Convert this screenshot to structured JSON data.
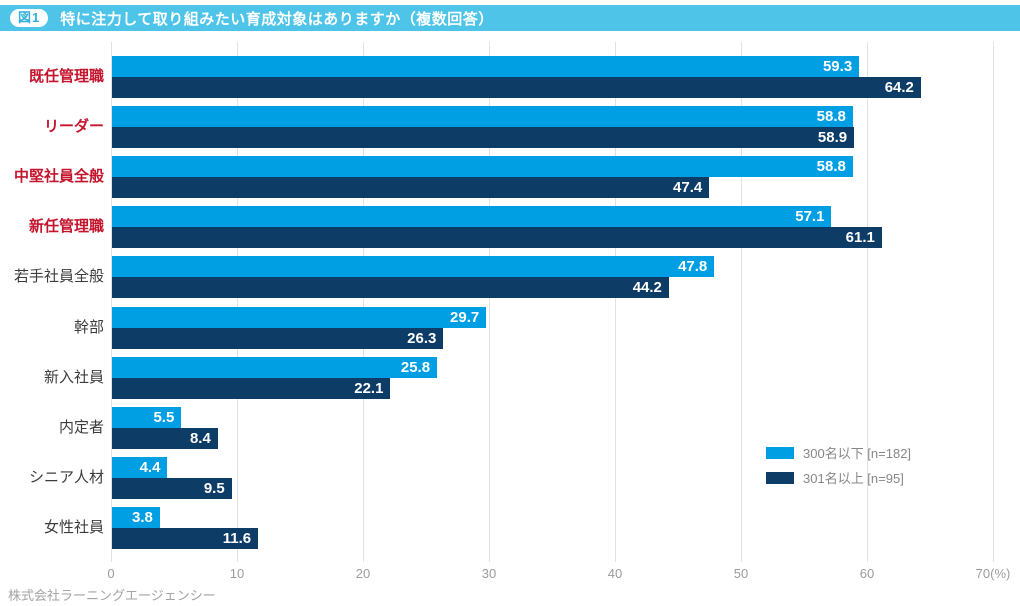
{
  "header": {
    "badge": "図1",
    "title": "特に注力して取り組みたい育成対象はありますか（複数回答）"
  },
  "footer": {
    "company": "株式会社ラーニングエージェンシー"
  },
  "colors": {
    "header_band": "#4dc4e8",
    "badge_text": "#2fb0dd",
    "series1": "#009ee2",
    "series2": "#0d3c66",
    "category_emphasis": "#c4152d",
    "category_normal": "#3c3c3c",
    "gridline": "#e1e1e1",
    "tick_text": "#9b9b9b"
  },
  "chart_data": {
    "type": "bar",
    "orientation": "horizontal",
    "title": "特に注力して取り組みたい育成対象はありますか（複数回答）",
    "categories": [
      "既任管理職",
      "リーダー",
      "中堅社員全般",
      "新任管理職",
      "若手社員全般",
      "幹部",
      "新入社員",
      "内定者",
      "シニア人材",
      "女性社員"
    ],
    "category_emphasis": [
      true,
      true,
      true,
      true,
      false,
      false,
      false,
      false,
      false,
      false
    ],
    "series": [
      {
        "name": "300名以下 [n=182]",
        "color": "#009ee2",
        "values": [
          59.3,
          58.8,
          58.8,
          57.1,
          47.8,
          29.7,
          25.8,
          5.5,
          4.4,
          3.8
        ]
      },
      {
        "name": "301名以上 [n=95]",
        "color": "#0d3c66",
        "values": [
          64.2,
          58.9,
          47.4,
          61.1,
          44.2,
          26.3,
          22.1,
          8.4,
          9.5,
          11.6
        ]
      }
    ],
    "value_labels": "inside-end",
    "xlim": [
      0,
      70
    ],
    "xticks": [
      0,
      10,
      20,
      30,
      40,
      50,
      60,
      70
    ],
    "xtick_labels": [
      "0",
      "10",
      "20",
      "30",
      "40",
      "50",
      "60",
      "70(%)"
    ],
    "grid": true,
    "legend_position": "bottom-right"
  }
}
